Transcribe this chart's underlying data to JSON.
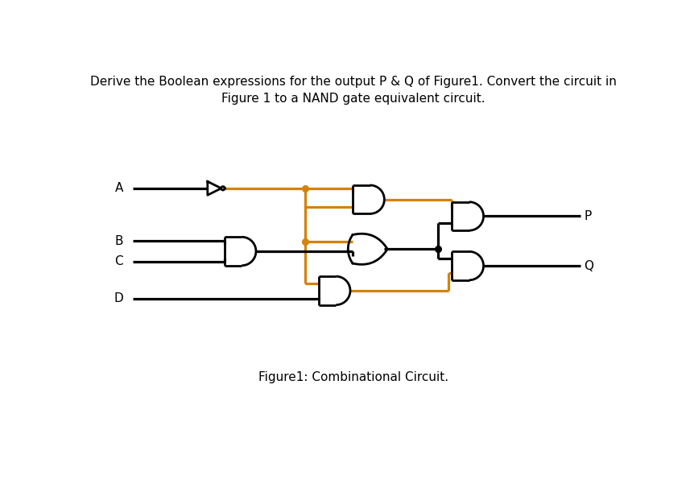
{
  "title_text": "Derive the Boolean expressions for the output P & Q of Figure1. Convert the circuit in\nFigure 1 to a NAND gate equivalent circuit.",
  "caption": "Figure1: Combinational Circuit.",
  "bg_color": "#ffffff",
  "black": "#000000",
  "orange": "#d4820a",
  "inputs": [
    "A",
    "B",
    "C",
    "D"
  ],
  "outputs": [
    "P",
    "Q"
  ]
}
